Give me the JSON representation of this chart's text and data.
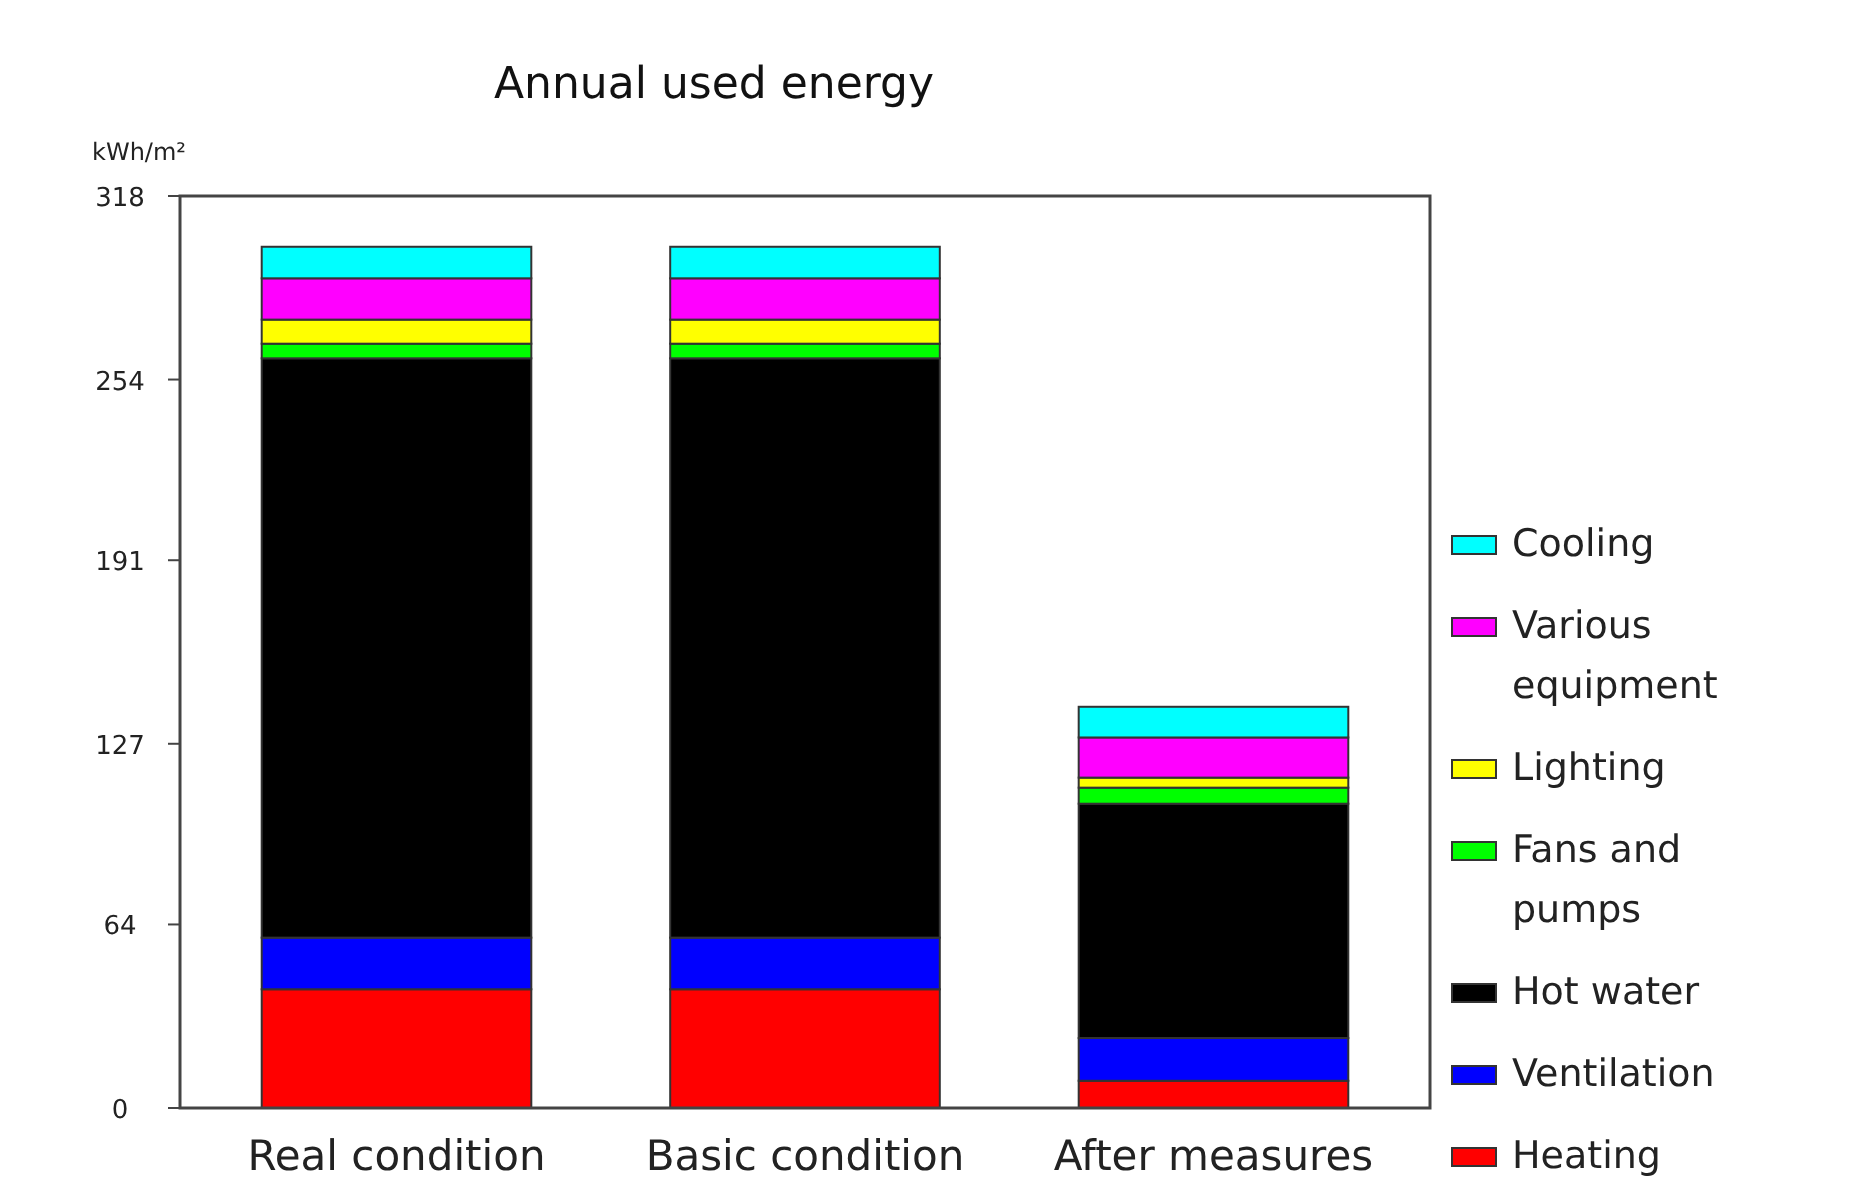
{
  "chart_data": {
    "type": "bar",
    "title": "Annual used energy",
    "ylabel": "kWh/m²",
    "categories": [
      "Real condition",
      "Basic condition",
      "After measures"
    ],
    "stacked": true,
    "ylim": [
      0,
      318
    ],
    "yticks": [
      0,
      64,
      127,
      191,
      254,
      318
    ],
    "grid": false,
    "legend": "right",
    "series": [
      {
        "name": "Heating",
        "color": "#ff0000",
        "values": [
          41.4,
          41.4,
          9.5
        ]
      },
      {
        "name": "Ventilation",
        "color": "#0000ff",
        "values": [
          18,
          18,
          14.9
        ]
      },
      {
        "name": "Hot water",
        "color": "#000000",
        "values": [
          202,
          202,
          81.7
        ]
      },
      {
        "name": "Fans and pumps",
        "color": "#00ff00",
        "values": [
          5.1,
          5.1,
          5.6
        ]
      },
      {
        "name": "Lighting",
        "color": "#ffff00",
        "values": [
          8.4,
          8.4,
          3.5
        ]
      },
      {
        "name": "Various equipment",
        "color": "#ff00ff",
        "values": [
          14.4,
          14.4,
          14
        ]
      },
      {
        "name": "Cooling",
        "color": "#00ffff",
        "values": [
          11,
          11,
          10.7
        ]
      }
    ]
  }
}
